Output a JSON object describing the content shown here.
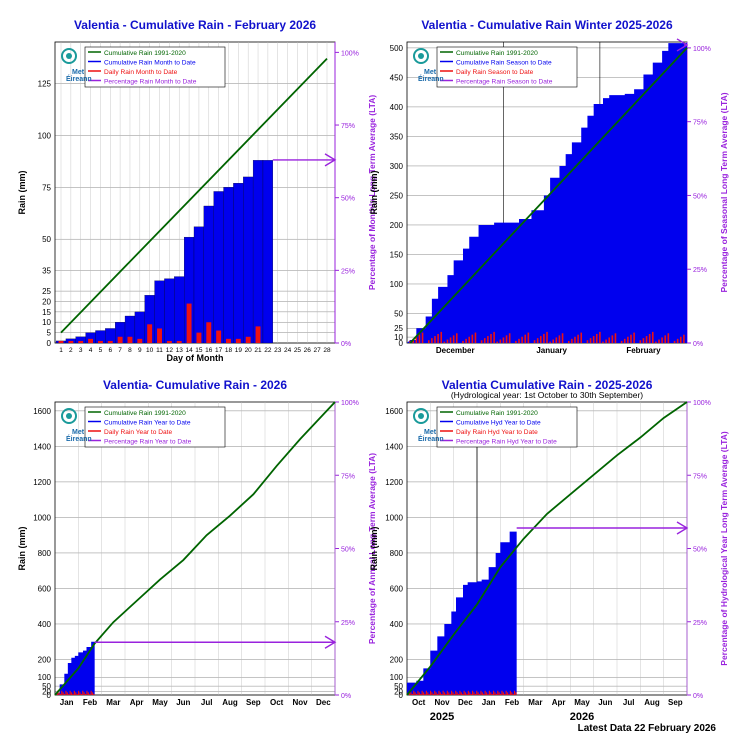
{
  "footer": "Latest Data 22 February 2026",
  "brand": {
    "line1": "Met",
    "line2": "Éireann"
  },
  "colors": {
    "title": "#1111cc",
    "lta": "#006400",
    "cumulative": "#0000ee",
    "daily": "#ee1111",
    "percent": "#9922dd",
    "grid": "#888888"
  },
  "chart_data": [
    {
      "type": "bar",
      "title": "Valentia - Cumulative Rain -  February   2026",
      "xlabel": "Day of Month",
      "ylabel": "Rain (mm)",
      "y2label": "Percentage of Monthly Long Term Average (LTA)",
      "ylim": [
        0,
        145
      ],
      "y_ticks": [
        0,
        5,
        10,
        15,
        20,
        25,
        35,
        50,
        75,
        100,
        125
      ],
      "y2_ticks": [
        "0%",
        "25%",
        "50%",
        "75%",
        "100%"
      ],
      "y2_max_mm": 140,
      "x_ticks": [
        "1",
        "2",
        "3",
        "4",
        "5",
        "6",
        "7",
        "8",
        "9",
        "10",
        "11",
        "12",
        "13",
        "14",
        "15",
        "16",
        "17",
        "18",
        "19",
        "20",
        "21",
        "22",
        "23",
        "24",
        "25",
        "26",
        "27",
        "28"
      ],
      "legend": [
        "Cumulative Rain 1991-2020",
        "Cumulative Rain Month to Date",
        "Daily Rain Month to Date",
        "Percentage Rain Month to Date"
      ],
      "legend_position": "top-left",
      "lta": {
        "x": [
          1,
          28
        ],
        "y": [
          5,
          137
        ]
      },
      "cumulative": [
        1,
        2,
        3,
        5,
        6,
        7,
        10,
        13,
        15,
        23,
        30,
        31,
        32,
        51,
        56,
        66,
        73,
        75,
        77,
        80,
        88,
        88
      ],
      "daily": [
        1,
        1,
        1,
        2,
        1,
        1,
        3,
        3,
        2,
        9,
        7,
        1,
        1,
        19,
        5,
        10,
        6,
        2,
        2,
        3,
        8,
        0
      ],
      "percent_to_date": 63
    },
    {
      "type": "bar",
      "title": "Valentia - Cumulative Rain Winter 2025-2026",
      "xlabel": "",
      "ylabel": "Rain (mm)",
      "y2label": "Percentage of Seasonal Long Term Average (LTA)",
      "ylim": [
        0,
        510
      ],
      "y_ticks": [
        0,
        10,
        25,
        50,
        100,
        150,
        200,
        250,
        300,
        350,
        400,
        450,
        500
      ],
      "y2_ticks": [
        "0%",
        "25%",
        "50%",
        "75%",
        "100%"
      ],
      "y2_max_mm": 500,
      "x_ticks": [
        "December",
        "January",
        "February"
      ],
      "legend": [
        "Cumulative Rain 1991-2020",
        "Cumulative Rain Season to Date",
        "Daily Rain Season to Date",
        "Percentage Rain Season to Date"
      ],
      "legend_position": "top-left",
      "lta": {
        "x": [
          1,
          90
        ],
        "y": [
          0,
          500
        ]
      },
      "cumulative": [
        [
          1,
          5
        ],
        [
          3,
          25
        ],
        [
          6,
          45
        ],
        [
          8,
          75
        ],
        [
          10,
          95
        ],
        [
          13,
          115
        ],
        [
          15,
          140
        ],
        [
          18,
          160
        ],
        [
          20,
          180
        ],
        [
          23,
          200
        ],
        [
          28,
          204
        ],
        [
          34,
          204
        ],
        [
          36,
          210
        ],
        [
          40,
          225
        ],
        [
          44,
          250
        ],
        [
          46,
          280
        ],
        [
          49,
          300
        ],
        [
          51,
          320
        ],
        [
          53,
          340
        ],
        [
          56,
          365
        ],
        [
          58,
          385
        ],
        [
          60,
          405
        ],
        [
          63,
          415
        ],
        [
          65,
          420
        ],
        [
          70,
          422
        ],
        [
          73,
          430
        ],
        [
          76,
          455
        ],
        [
          79,
          475
        ],
        [
          82,
          495
        ],
        [
          84,
          508
        ],
        [
          89,
          508
        ]
      ],
      "daily_max": 20,
      "percent_to_date": 101
    },
    {
      "type": "area",
      "title": "Valentia- Cumulative Rain - 2026",
      "xlabel": "",
      "ylabel": "Rain (mm)",
      "y2label": "Percentage of Annual Long Term Average (LTA)",
      "ylim": [
        0,
        1650
      ],
      "y_ticks": [
        0,
        20,
        50,
        100,
        200,
        400,
        600,
        800,
        1000,
        1200,
        1400,
        1600
      ],
      "y2_ticks": [
        "0%",
        "25%",
        "50%",
        "75%",
        "100%"
      ],
      "y2_max_mm": 1650,
      "x_ticks": [
        "Jan",
        "Feb",
        "Mar",
        "Apr",
        "May",
        "Jun",
        "Jul",
        "Aug",
        "Sep",
        "Oct",
        "Nov",
        "Dec"
      ],
      "legend": [
        "Cumulative Rain 1991-2020",
        "Cumulative Rain Year to Date",
        "Daily Rain Year to Date",
        "Percentage Rain Year to Date"
      ],
      "legend_position": "top-left",
      "lta": {
        "x": [
          0,
          1,
          1.7,
          2.5,
          3.5,
          4.5,
          5.5,
          6.5,
          7.5,
          8.5,
          9.5,
          10.5,
          12
        ],
        "y": [
          0,
          150,
          290,
          410,
          530,
          650,
          760,
          900,
          1010,
          1130,
          1290,
          1440,
          1650
        ]
      },
      "cumulative": [
        [
          0,
          10
        ],
        [
          0.2,
          60
        ],
        [
          0.4,
          120
        ],
        [
          0.55,
          180
        ],
        [
          0.7,
          210
        ],
        [
          0.85,
          220
        ],
        [
          1.0,
          240
        ],
        [
          1.2,
          250
        ],
        [
          1.35,
          270
        ],
        [
          1.55,
          300
        ],
        [
          1.7,
          300
        ]
      ],
      "percent_to_date": 18
    },
    {
      "type": "area",
      "title": "Valentia Cumulative Rain - 2025-2026",
      "subtitle": "(Hydrological year: 1st October to 30th September)",
      "xlabel": "",
      "ylabel": "Rain (mm)",
      "y2label": "Percentage  of Hydrological Year Long Term Average (LTA)",
      "ylim": [
        0,
        1650
      ],
      "y_ticks": [
        0,
        20,
        50,
        100,
        200,
        400,
        600,
        800,
        1000,
        1200,
        1400,
        1600
      ],
      "y2_ticks": [
        "0%",
        "25%",
        "50%",
        "75%",
        "100%"
      ],
      "y2_max_mm": 1650,
      "x_ticks": [
        "Oct",
        "Nov",
        "Dec",
        "Jan",
        "Feb",
        "Mar",
        "Apr",
        "May",
        "Jun",
        "Jul",
        "Aug",
        "Sep"
      ],
      "year_labels": [
        "2025",
        "2026"
      ],
      "legend": [
        "Cumulative Rain 1991-2020",
        "Cumulative Hyd Year to Date",
        "Daily Rain Hyd Year to Date",
        "Percentage Rain Hyd Year to Date"
      ],
      "legend_position": "top-left",
      "lta": {
        "x": [
          0,
          1,
          2,
          3,
          4,
          5,
          6,
          7,
          8,
          9,
          10,
          11,
          12
        ],
        "y": [
          0,
          160,
          340,
          510,
          720,
          880,
          1020,
          1130,
          1240,
          1350,
          1450,
          1560,
          1650
        ]
      },
      "cumulative": [
        [
          0,
          70
        ],
        [
          0.4,
          80
        ],
        [
          0.7,
          150
        ],
        [
          1.0,
          250
        ],
        [
          1.3,
          330
        ],
        [
          1.6,
          400
        ],
        [
          1.9,
          470
        ],
        [
          2.1,
          550
        ],
        [
          2.4,
          620
        ],
        [
          2.6,
          635
        ],
        [
          3.0,
          640
        ],
        [
          3.2,
          650
        ],
        [
          3.5,
          720
        ],
        [
          3.8,
          800
        ],
        [
          4.0,
          860
        ],
        [
          4.4,
          920
        ],
        [
          4.7,
          935
        ]
      ],
      "percent_to_date": 57
    }
  ]
}
